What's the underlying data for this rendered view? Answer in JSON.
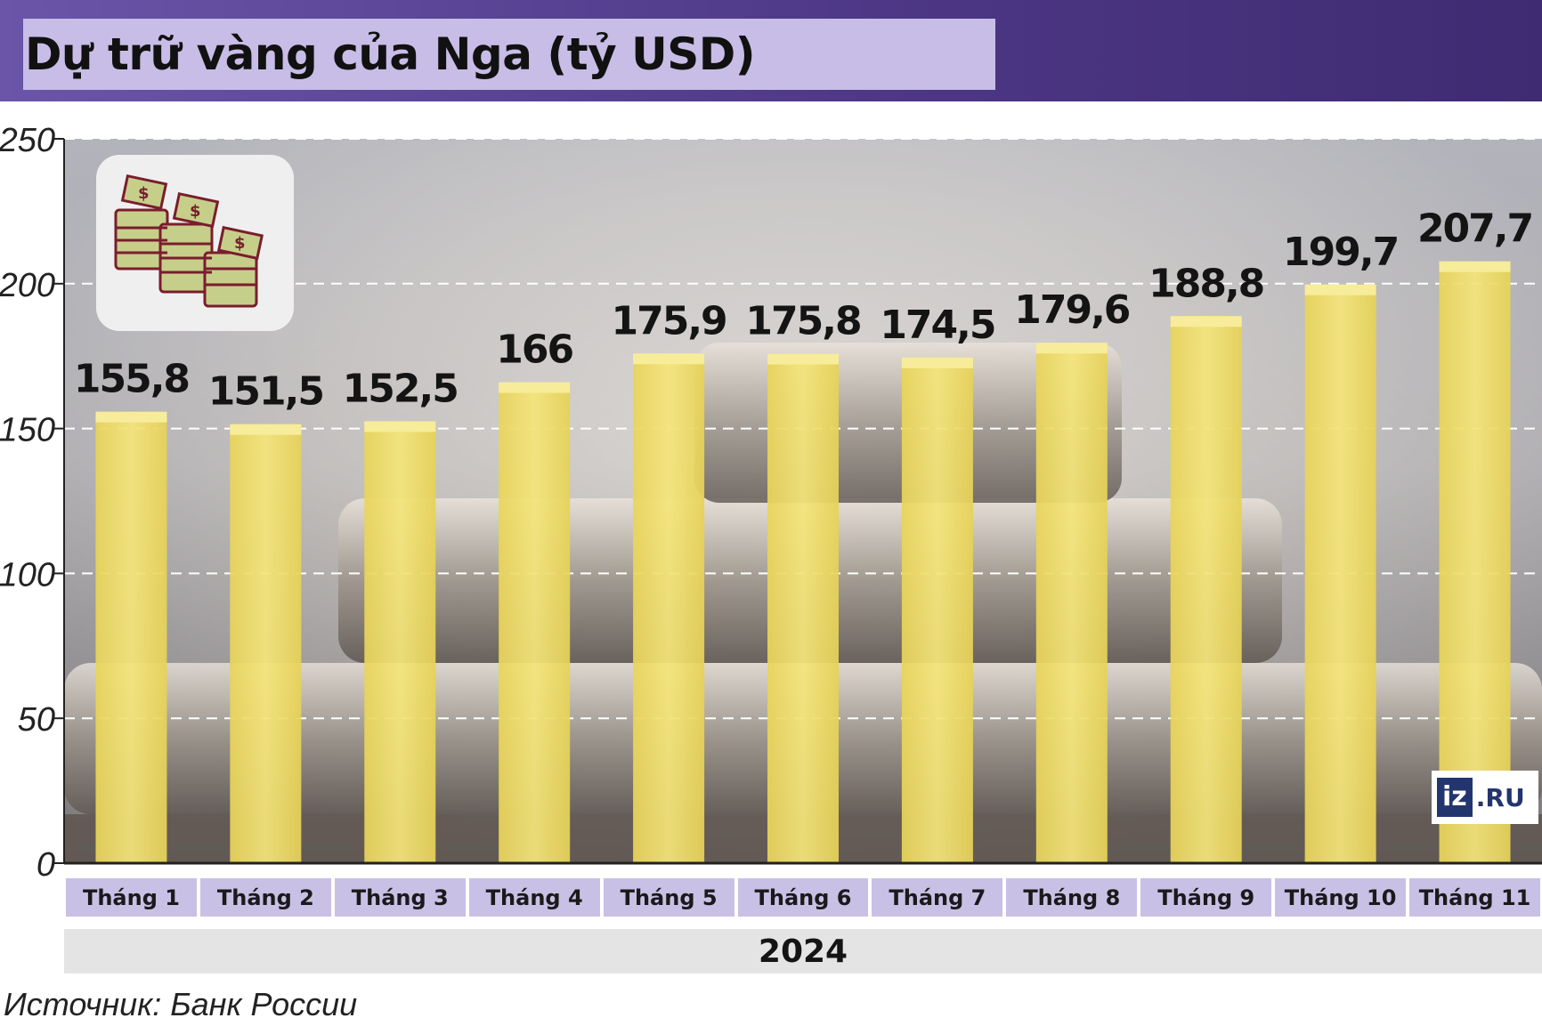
{
  "title": "Dự trữ vàng của Nga (tỷ USD)",
  "source": "Источник: Банк России",
  "logo": {
    "prefix": "iz",
    "suffix": ".RU"
  },
  "icon": "money-stacks-icon",
  "colors": {
    "bar": "#f0df6a",
    "header": "#4e3887",
    "title_box": "#c7bde6",
    "category_cell": "#c9c0e6"
  },
  "chart_data": {
    "type": "bar",
    "title": "Dự trữ vàng của Nga (tỷ USD)",
    "categories": [
      "Tháng 1",
      "Tháng 2",
      "Tháng 3",
      "Tháng 4",
      "Tháng 5",
      "Tháng 6",
      "Tháng 7",
      "Tháng 8",
      "Tháng 9",
      "Tháng 10",
      "Tháng 11"
    ],
    "values": [
      155.8,
      151.5,
      152.5,
      166,
      175.9,
      175.8,
      174.5,
      179.6,
      188.8,
      199.7,
      207.7
    ],
    "value_labels": [
      "155,8",
      "151,5",
      "152,5",
      "166",
      "175,9",
      "175,8",
      "174,5",
      "179,6",
      "188,8",
      "199,7",
      "207,7"
    ],
    "x_group_label": "2024",
    "yticks": [
      "0",
      "50",
      "100",
      "150",
      "200",
      "250"
    ],
    "ylim": [
      0,
      250
    ],
    "grid": true,
    "legend": "none"
  }
}
